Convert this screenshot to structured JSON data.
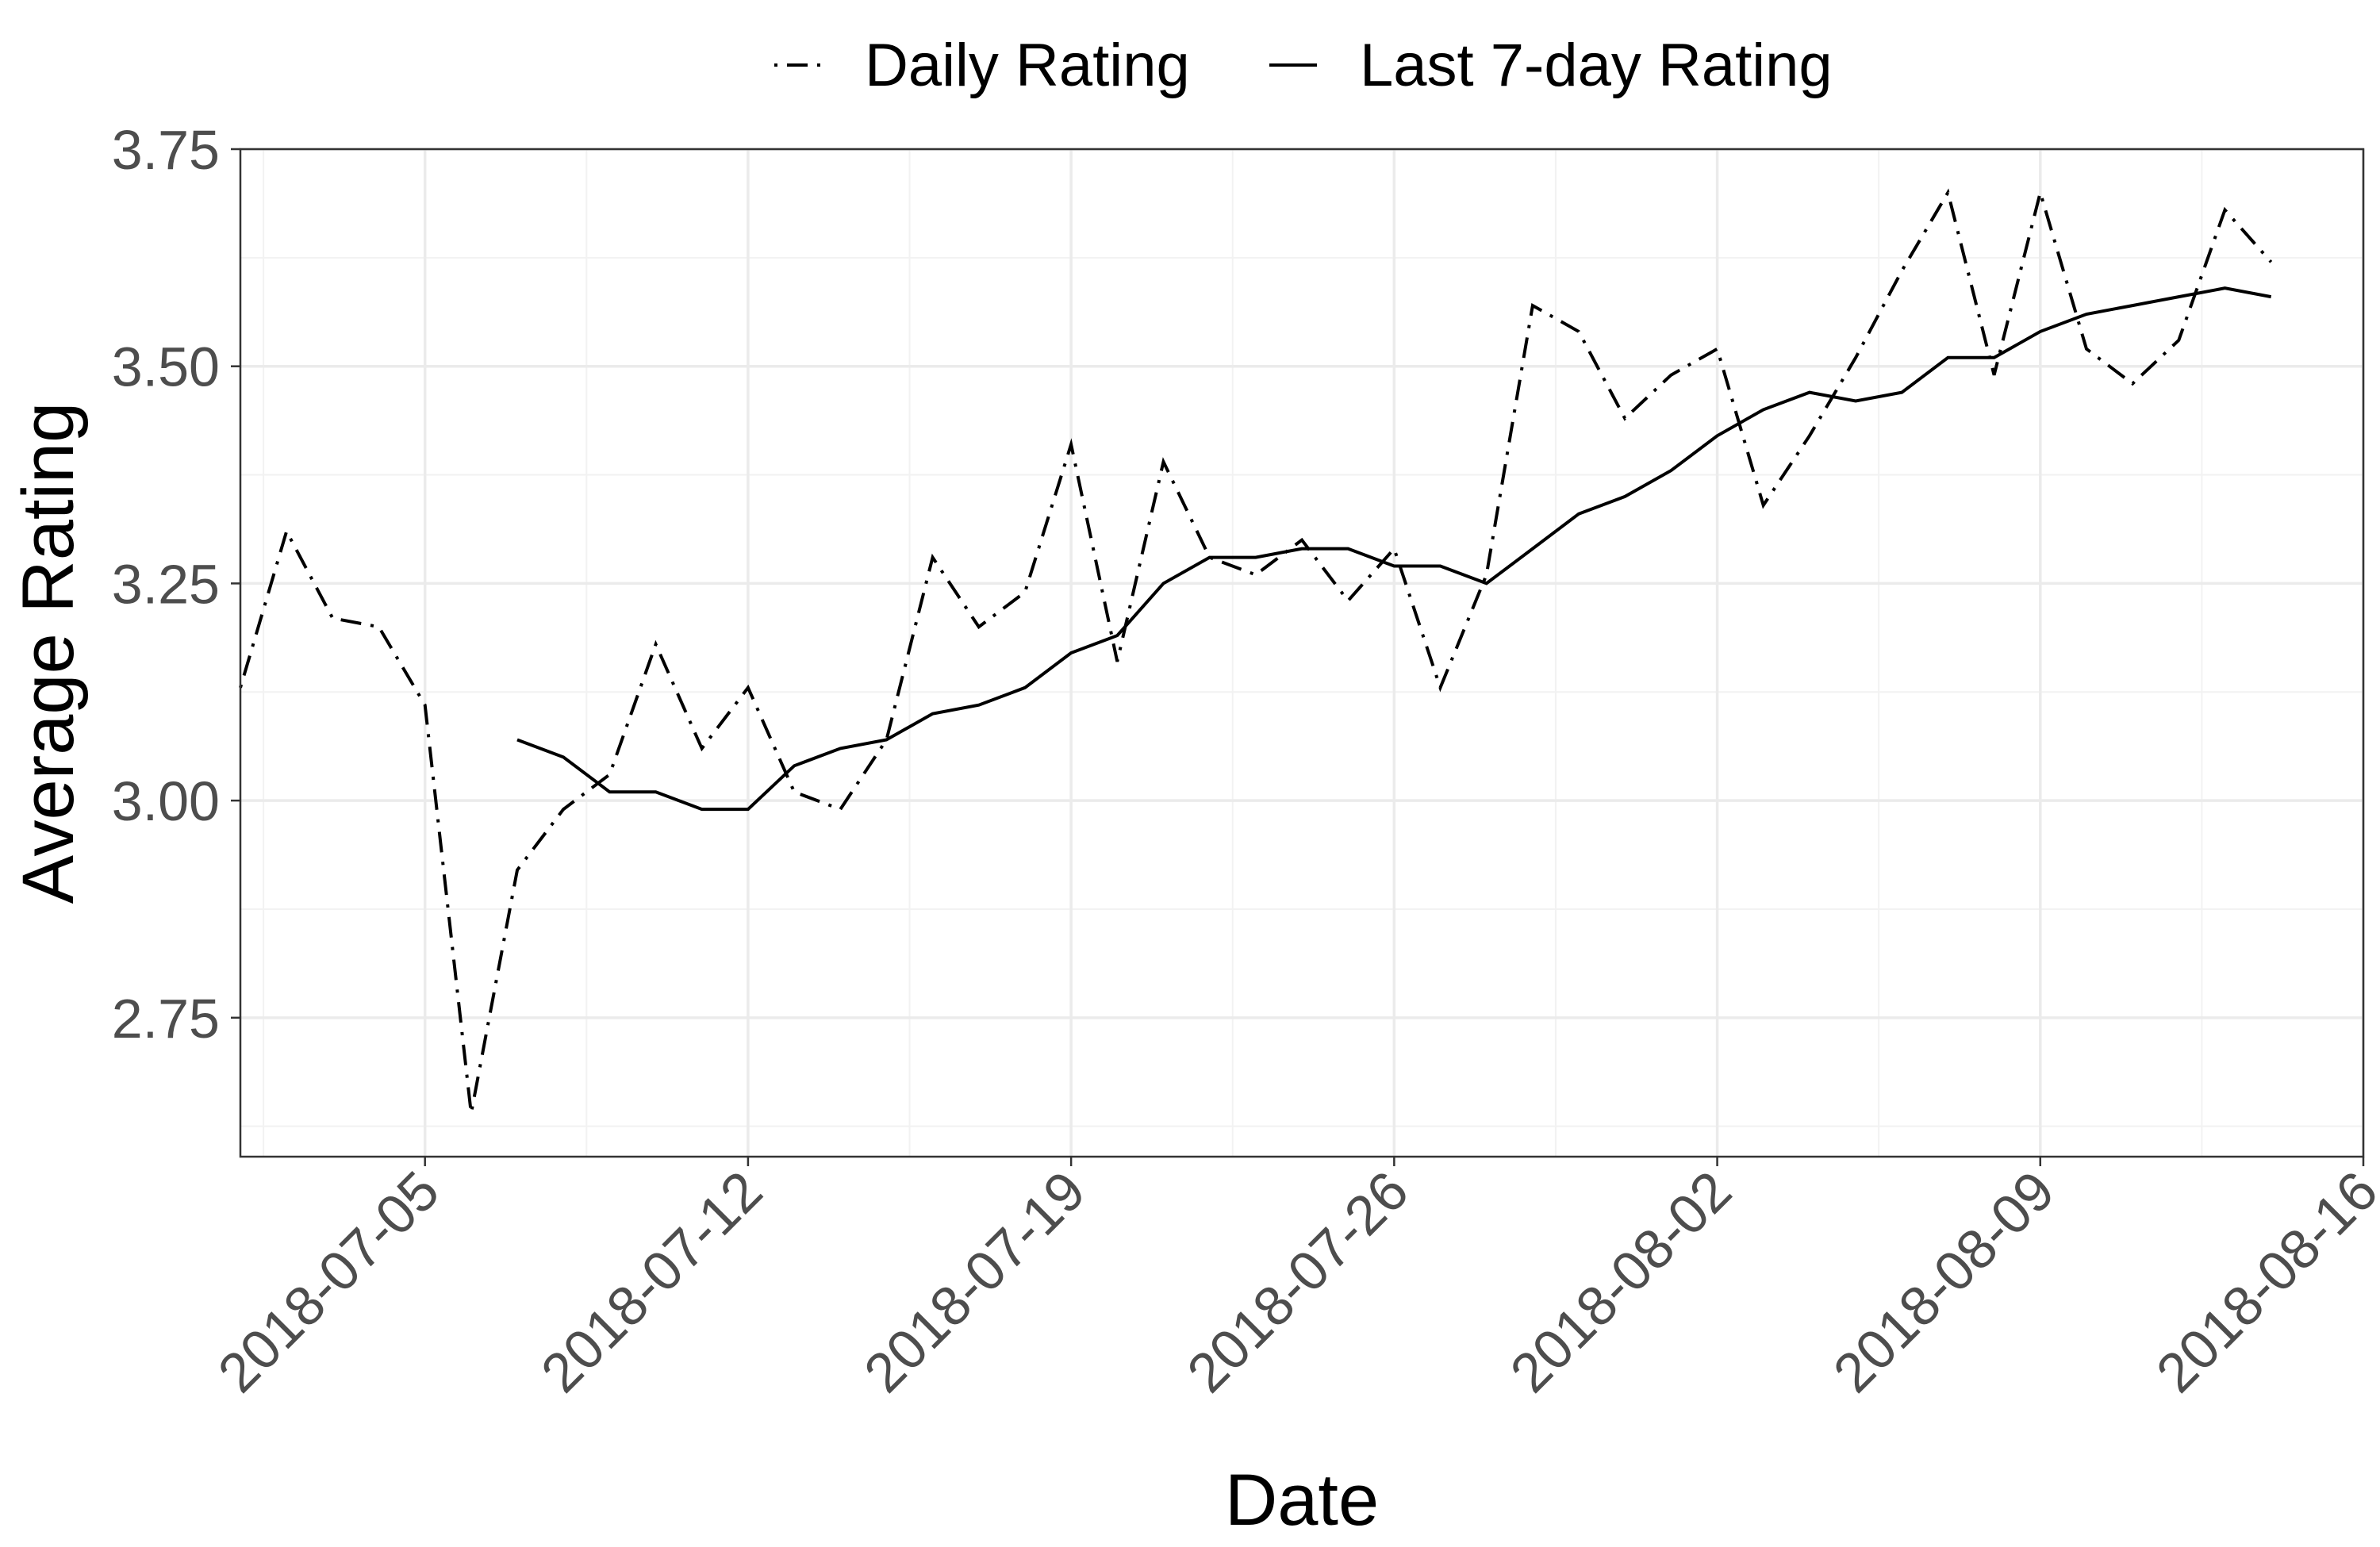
{
  "chart_data": {
    "type": "line",
    "title": "",
    "xlabel": "Date",
    "ylabel": "Average Rating",
    "x_type": "date",
    "xlim": [
      "2018-07-01",
      "2018-08-16"
    ],
    "ylim": [
      2.59,
      3.75
    ],
    "x_ticks": [
      "2018-07-05",
      "2018-07-12",
      "2018-07-19",
      "2018-07-26",
      "2018-08-02",
      "2018-08-09",
      "2018-08-16"
    ],
    "y_ticks": [
      2.75,
      3.0,
      3.25,
      3.5,
      3.75
    ],
    "y_tick_labels": [
      "2.75",
      "3.00",
      "3.25",
      "3.50",
      "3.75"
    ],
    "grid": true,
    "legend_position": "top",
    "series": [
      {
        "name": "Daily Rating",
        "line_style": "dashdot",
        "color": "#000000",
        "x": [
          "2018-07-01",
          "2018-07-02",
          "2018-07-03",
          "2018-07-04",
          "2018-07-05",
          "2018-07-06",
          "2018-07-07",
          "2018-07-08",
          "2018-07-09",
          "2018-07-10",
          "2018-07-11",
          "2018-07-12",
          "2018-07-13",
          "2018-07-14",
          "2018-07-15",
          "2018-07-16",
          "2018-07-17",
          "2018-07-18",
          "2018-07-19",
          "2018-07-20",
          "2018-07-21",
          "2018-07-22",
          "2018-07-23",
          "2018-07-24",
          "2018-07-25",
          "2018-07-26",
          "2018-07-27",
          "2018-07-28",
          "2018-07-29",
          "2018-07-30",
          "2018-07-31",
          "2018-08-01",
          "2018-08-02",
          "2018-08-03",
          "2018-08-04",
          "2018-08-05",
          "2018-08-06",
          "2018-08-07",
          "2018-08-08",
          "2018-08-09",
          "2018-08-10",
          "2018-08-11",
          "2018-08-12",
          "2018-08-13",
          "2018-08-14"
        ],
        "values": [
          3.13,
          3.31,
          3.21,
          3.2,
          3.11,
          2.64,
          2.92,
          2.99,
          3.03,
          3.18,
          3.06,
          3.13,
          3.01,
          2.99,
          3.07,
          3.28,
          3.2,
          3.24,
          3.41,
          3.16,
          3.39,
          3.28,
          3.26,
          3.3,
          3.23,
          3.29,
          3.13,
          3.26,
          3.57,
          3.54,
          3.44,
          3.49,
          3.52,
          3.34,
          3.42,
          3.51,
          3.61,
          3.7,
          3.49,
          3.7,
          3.52,
          3.48,
          3.53,
          3.68,
          3.62
        ]
      },
      {
        "name": "Last 7-day Rating",
        "line_style": "solid",
        "color": "#000000",
        "x": [
          "2018-07-07",
          "2018-07-08",
          "2018-07-09",
          "2018-07-10",
          "2018-07-11",
          "2018-07-12",
          "2018-07-13",
          "2018-07-14",
          "2018-07-15",
          "2018-07-16",
          "2018-07-17",
          "2018-07-18",
          "2018-07-19",
          "2018-07-20",
          "2018-07-21",
          "2018-07-22",
          "2018-07-23",
          "2018-07-24",
          "2018-07-25",
          "2018-07-26",
          "2018-07-27",
          "2018-07-28",
          "2018-07-29",
          "2018-07-30",
          "2018-07-31",
          "2018-08-01",
          "2018-08-02",
          "2018-08-03",
          "2018-08-04",
          "2018-08-05",
          "2018-08-06",
          "2018-08-07",
          "2018-08-08",
          "2018-08-09",
          "2018-08-10",
          "2018-08-11",
          "2018-08-12",
          "2018-08-13",
          "2018-08-14"
        ],
        "values": [
          3.07,
          3.05,
          3.01,
          3.01,
          2.99,
          2.99,
          3.04,
          3.06,
          3.07,
          3.1,
          3.11,
          3.13,
          3.17,
          3.19,
          3.25,
          3.28,
          3.28,
          3.29,
          3.29,
          3.27,
          3.27,
          3.25,
          3.29,
          3.33,
          3.35,
          3.38,
          3.42,
          3.45,
          3.47,
          3.46,
          3.47,
          3.51,
          3.51,
          3.54,
          3.56,
          3.57,
          3.58,
          3.59,
          3.58
        ]
      }
    ]
  }
}
